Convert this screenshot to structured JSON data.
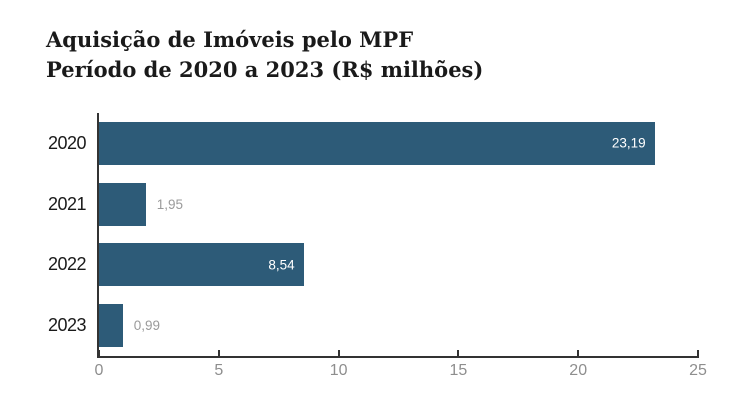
{
  "title": {
    "line1": "Aquisição de Imóveis pelo MPF",
    "line2": "Período de 2020 a 2023 (R$ milhões)"
  },
  "chart_data": {
    "type": "bar",
    "orientation": "horizontal",
    "title": "Aquisição de Imóveis pelo MPF",
    "subtitle": "Período de 2020 a 2023 (R$ milhões)",
    "categories": [
      "2020",
      "2021",
      "2022",
      "2023"
    ],
    "values": [
      23.19,
      1.95,
      8.54,
      0.99
    ],
    "value_labels": [
      "23,19",
      "1,95",
      "8,54",
      "0,99"
    ],
    "xlabel": "",
    "ylabel": "",
    "xlim": [
      0,
      25
    ],
    "x_ticks": [
      0,
      5,
      10,
      15,
      20,
      25
    ],
    "x_tick_labels": [
      "0",
      "5",
      "10",
      "15",
      "20",
      "25"
    ],
    "grid": false,
    "legend": false,
    "colors": {
      "bar": "#2d5b78",
      "axis": "#333333",
      "tick_label": "#8e8e8e",
      "value_label_inside": "#ffffff",
      "value_label_outside": "#9a9a9a",
      "title": "#1a1a1a",
      "category_label": "#1a1a1a",
      "background": "#ffffff"
    }
  }
}
